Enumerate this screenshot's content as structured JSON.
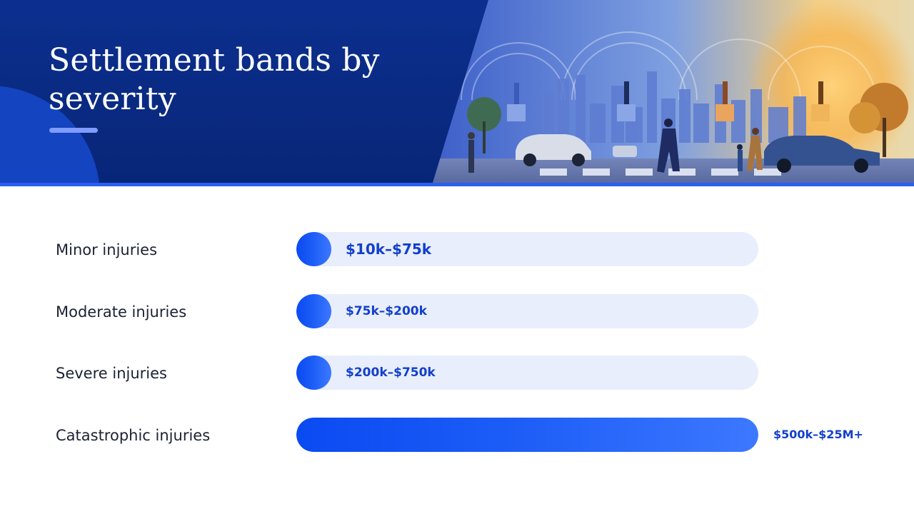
{
  "slide": {
    "title": "Settlement bands by severity",
    "colors": {
      "header_navy": "#0a2a82",
      "accent_blue": "#1550f5",
      "track_tint": "#e8eefc",
      "label_text": "#1b2233",
      "value_text": "#123fcc"
    }
  },
  "chart_data": {
    "type": "bar",
    "orientation": "horizontal",
    "title": "",
    "categories": [
      "Minor injuries",
      "Moderate injuries",
      "Severe injuries",
      "Catastrophic injuries"
    ],
    "range_labels": [
      "$10k–$75k",
      "$75k–$200k",
      "$200k–$750k",
      "$500k–$25M+"
    ],
    "fill_fraction": [
      0.075,
      0.075,
      0.075,
      1.0
    ],
    "grid": false,
    "legend": "none"
  }
}
